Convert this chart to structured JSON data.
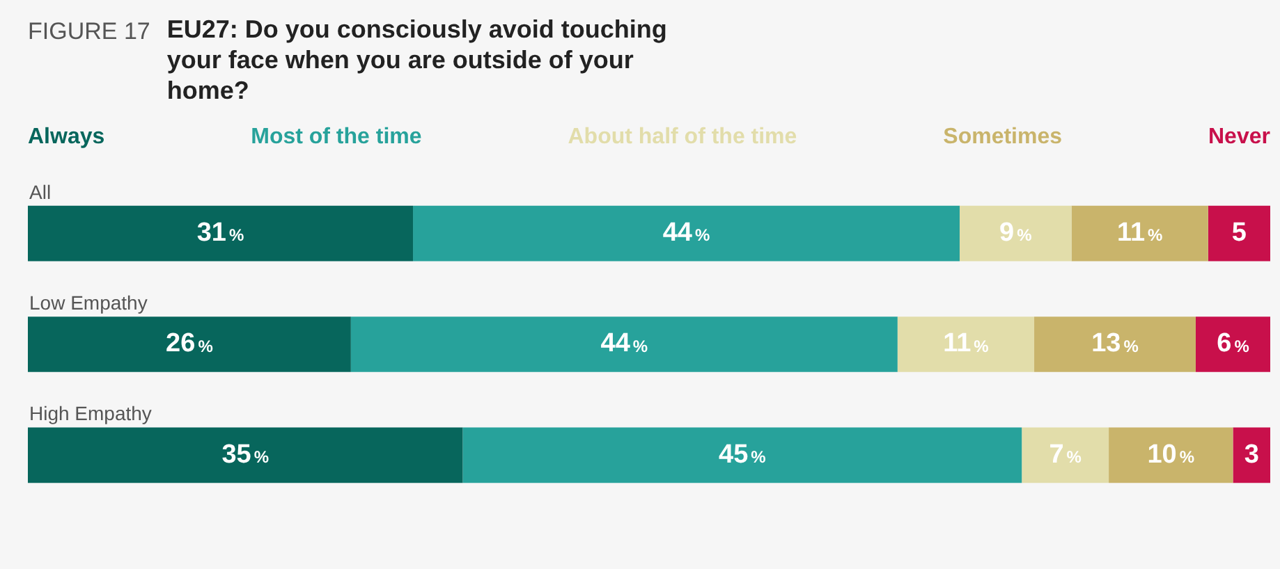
{
  "chart_data": {
    "type": "bar",
    "orientation": "horizontal",
    "stacked": true,
    "title": "EU27: Do you consciously avoid touching your face when you are outside of your home?",
    "annotations": [
      "FIGURE 17"
    ],
    "legend": "top",
    "categories": [
      "All",
      "Low Empathy",
      "High Empathy"
    ],
    "series": [
      {
        "name": "Always",
        "color": "#07665c",
        "values": [
          31,
          26,
          35
        ],
        "value_labels": [
          "31%",
          "26%",
          "35%"
        ]
      },
      {
        "name": "Most of the time",
        "color": "#27a29b",
        "values": [
          44,
          44,
          45
        ],
        "value_labels": [
          "44%",
          "44%",
          "45%"
        ]
      },
      {
        "name": "About half of the time",
        "color": "#e2ddaa",
        "values": [
          9,
          11,
          7
        ],
        "value_labels": [
          "9%",
          "11%",
          "7%"
        ]
      },
      {
        "name": "Sometimes",
        "color": "#c9b46b",
        "values": [
          11,
          13,
          10
        ],
        "value_labels": [
          "11%",
          "13%",
          "10%"
        ]
      },
      {
        "name": "Never",
        "color": "#c8104b",
        "values": [
          5,
          6,
          3
        ],
        "value_labels": [
          "5",
          "6%",
          "3"
        ]
      }
    ]
  }
}
